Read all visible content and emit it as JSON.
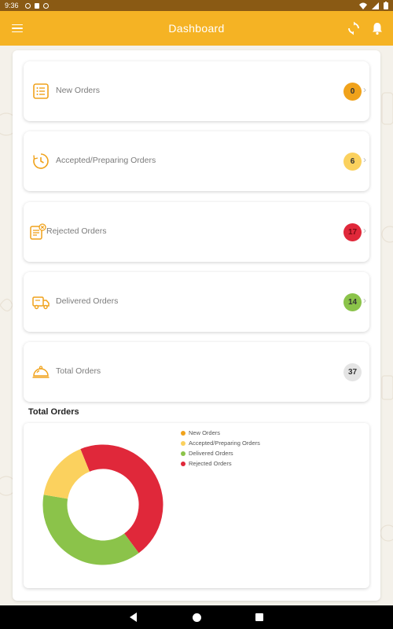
{
  "status_bar": {
    "time": "9:36"
  },
  "app_bar": {
    "title": "Dashboard"
  },
  "colors": {
    "accent": "#f5b324",
    "orange": "#f0a21b",
    "yellow": "#fbd15e",
    "green": "#8bc34a",
    "red": "#e0283a",
    "grey": "#e4e4e4"
  },
  "cards": [
    {
      "label": "New Orders",
      "count": "0",
      "icon": "list-icon"
    },
    {
      "label": "Accepted/Preparing Orders",
      "count": "6",
      "icon": "clock-icon"
    },
    {
      "label": "Rejected Orders",
      "count": "17",
      "icon": "rejected-list-icon"
    },
    {
      "label": "Delivered Orders",
      "count": "14",
      "icon": "delivery-truck-icon"
    },
    {
      "label": "Total Orders",
      "count": "37",
      "icon": "cloche-icon"
    }
  ],
  "chart_data": {
    "type": "pie",
    "title": "Total Orders",
    "legend_position": "top-right",
    "series": [
      {
        "name": "New Orders",
        "value": 0,
        "color": "#f0a21b"
      },
      {
        "name": "Accepted/Preparing Orders",
        "value": 6,
        "color": "#fbd15e"
      },
      {
        "name": "Delivered Orders",
        "value": 14,
        "color": "#8bc34a"
      },
      {
        "name": "Rejected Orders",
        "value": 17,
        "color": "#e0283a"
      }
    ]
  }
}
